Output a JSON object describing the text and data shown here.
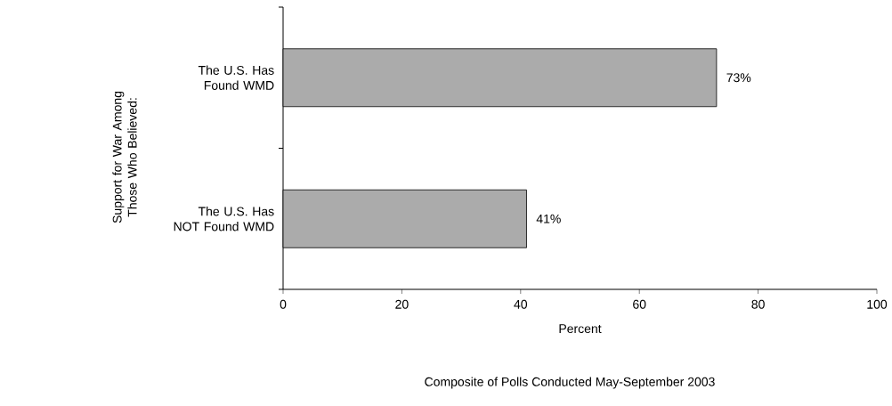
{
  "chart_data": {
    "type": "bar",
    "orientation": "horizontal",
    "ylabel": "Support for War Among Those Who Believed:",
    "xlabel": "Percent",
    "annotations": [
      "Composite of Polls Conducted May-September 2003"
    ],
    "categories": [
      "The U.S. Has Found WMD",
      "The U.S. Has NOT Found WMD"
    ],
    "values": [
      73,
      41
    ],
    "value_labels": [
      "73%",
      "41%"
    ],
    "color": "#ababab",
    "xlim": [
      0,
      100
    ],
    "xticks": [
      0,
      20,
      40,
      60,
      80,
      100
    ],
    "grid": false
  }
}
